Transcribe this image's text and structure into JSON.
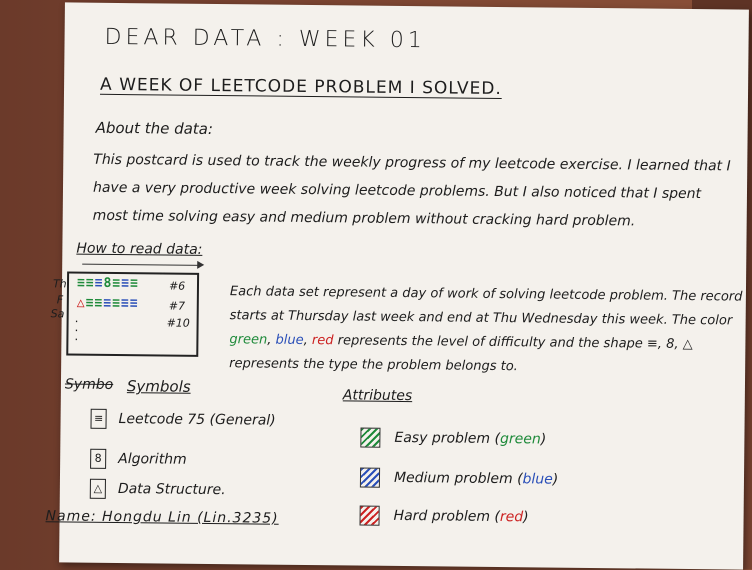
{
  "title": "DEAR DATA : WEEK 01",
  "subtitle": "A WEEK OF LEETCODE PROBLEM I SOLVED.",
  "about_heading": "About the data:",
  "about_text": "This postcard is used to track the weekly progress of my leetcode exercise. I learned that I have a very productive week solving leetcode problems. But I also noticed that I spent most time solving easy and medium problem without cracking hard problem.",
  "how_to_heading": "How to read data:",
  "legend_rows": [
    {
      "label": "Th",
      "glyphs": "≡≡≡§≡≡≡",
      "count": "#6"
    },
    {
      "label": "F",
      "glyphs": "",
      "count": ""
    },
    {
      "label": "Sa",
      "glyphs": "≡≡≡≡≡≡≡",
      "count": "#7"
    },
    {
      "label": "",
      "glyphs": "",
      "count": "#10"
    }
  ],
  "description": {
    "part1": "Each data set represent a day of work of solving leetcode problem. The record starts at Thursday last week and end at Thu Wednesday this week. The color ",
    "green": "green",
    "comma1": ", ",
    "blue": "blue",
    "comma2": ", ",
    "red": "red",
    "part2": " represents the level of difficulty and the shape ≡, 8, △ represents the type the problem belongs to."
  },
  "symbols_crossed": "Symbo",
  "symbols_heading": "Symbols",
  "attributes_heading": "Attributes",
  "symbols": [
    {
      "glyph": "≡",
      "label": "Leetcode 75 (General)"
    },
    {
      "glyph": "8",
      "label": "Algorithm"
    },
    {
      "glyph": "△",
      "label": "Data Structure."
    }
  ],
  "attributes": [
    {
      "label": "Easy problem",
      "color_word": "green",
      "color": "#1e8a3a"
    },
    {
      "label": "Medium problem",
      "color_word": "blue",
      "color": "#2a4fb8"
    },
    {
      "label": "Hard problem",
      "color_word": "red",
      "color": "#cc2222"
    }
  ],
  "name": "Name: Hongdu Lin (Lin.3235)"
}
